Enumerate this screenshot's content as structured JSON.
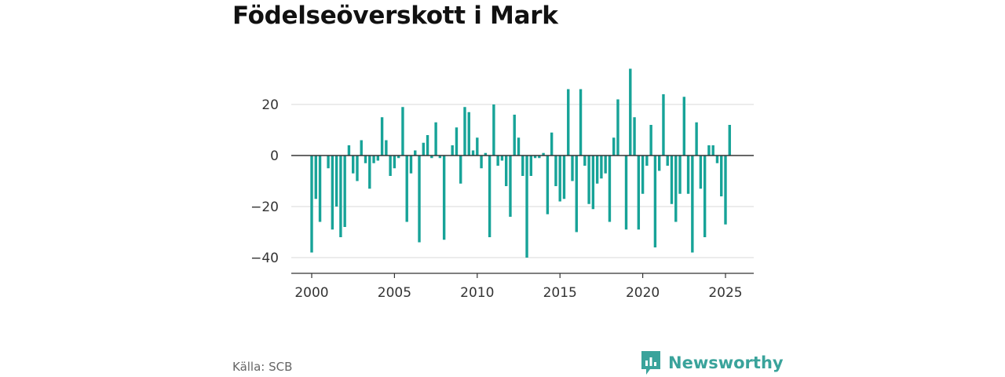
{
  "title": "Födelseöverskott i Mark",
  "source": "Källa: SCB",
  "brand": {
    "name": "Newsworthy",
    "icon": "newsworthy-logo-icon",
    "color": "#3aa39b"
  },
  "colors": {
    "bar": "#17a398",
    "grid": "#d9d9d9",
    "zero_line": "#333333"
  },
  "chart_data": {
    "type": "bar",
    "title": "Födelseöverskott i Mark",
    "xlabel": "",
    "ylabel": "",
    "x_tick_labels": [
      "2000",
      "2005",
      "2010",
      "2015",
      "2020",
      "2025"
    ],
    "y_tick_labels": [
      "−40",
      "−20",
      "0",
      "20"
    ],
    "y_ticks": [
      -40,
      -20,
      0,
      20
    ],
    "ylim": [
      -45,
      36
    ],
    "xlim": [
      1999.85,
      2026.6
    ],
    "grid": true,
    "start_year": 2000,
    "periods_per_year": 4,
    "values": [
      -38,
      -17,
      -26,
      0,
      -5,
      -29,
      -20,
      -32,
      -28,
      4,
      -7,
      -10,
      6,
      -3,
      -13,
      -3,
      -2,
      15,
      6,
      -8,
      -5,
      -1,
      19,
      -26,
      -7,
      2,
      -34,
      5,
      8,
      -1,
      13,
      -1,
      -33,
      0,
      4,
      11,
      -11,
      19,
      17,
      2,
      7,
      -5,
      1,
      -32,
      20,
      -4,
      -2,
      -12,
      -24,
      16,
      7,
      -8,
      -40,
      -8,
      -1,
      -1,
      1,
      -23,
      9,
      -12,
      -18,
      -17,
      26,
      -10,
      -30,
      26,
      -4,
      -19,
      -21,
      -11,
      -9,
      -7,
      -26,
      7,
      22,
      0,
      -29,
      34,
      15,
      -29,
      -15,
      -4,
      12,
      -36,
      -6,
      24,
      -4,
      -19,
      -26,
      -15,
      23,
      -15,
      -38,
      13,
      -13,
      -32,
      4,
      4,
      -3,
      -16,
      -27,
      12
    ]
  }
}
